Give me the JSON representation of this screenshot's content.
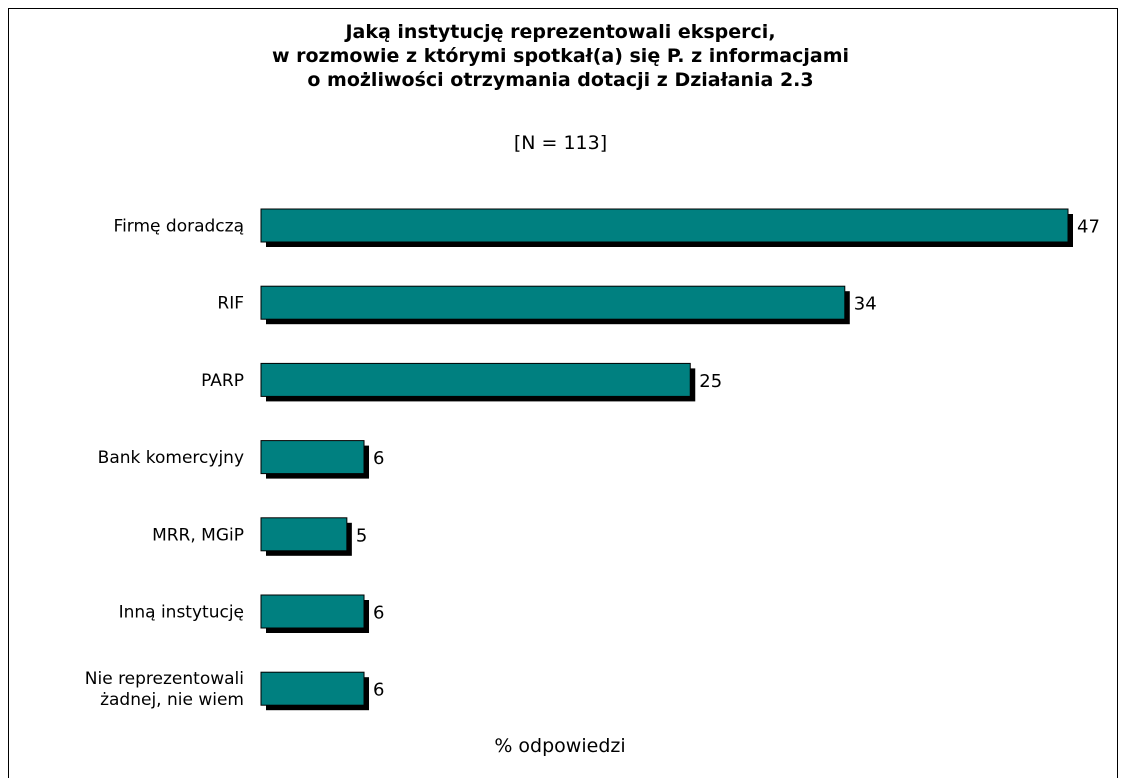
{
  "chart_data": {
    "type": "bar",
    "orientation": "horizontal",
    "title_lines": [
      "Jaką instytucję reprezentowali eksperci,",
      "w rozmowie z którymi spotkał(a) się P. z informacjami",
      "o możliwości otrzymania dotacji z Działania 2.3"
    ],
    "subtitle": "[N = 113]",
    "xlabel": "% odpowiedzi",
    "categories": [
      [
        "Firmę doradczą"
      ],
      [
        "RIF"
      ],
      [
        "PARP"
      ],
      [
        "Bank komercyjny"
      ],
      [
        "MRR, MGiP"
      ],
      [
        "Inną instytucję"
      ],
      [
        "Nie reprezentowali",
        "żadnej, nie wiem"
      ]
    ],
    "values": [
      47,
      34,
      25,
      6,
      5,
      6,
      6
    ],
    "xlim": [
      0,
      47
    ],
    "grid": false,
    "bar_color": "#008080",
    "shadow_color": "#000000"
  }
}
